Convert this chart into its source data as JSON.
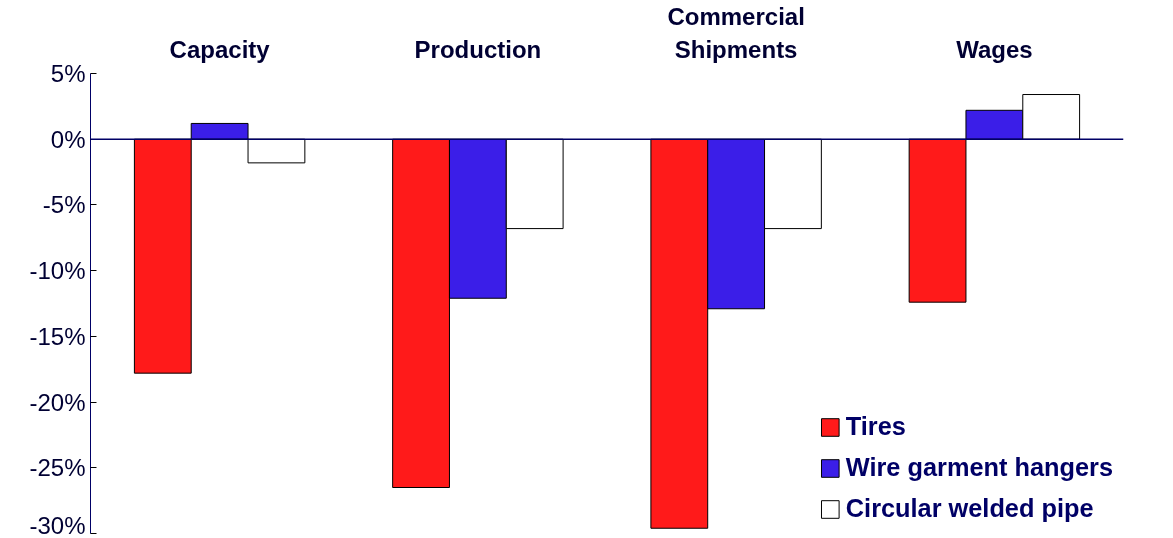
{
  "chart_data": {
    "type": "bar",
    "categories": [
      "Capacity",
      "Production",
      "Commercial\nShipments",
      "Wages"
    ],
    "series": [
      {
        "name": "Tires",
        "color": "#ff1a1a",
        "values": [
          -17.8,
          -26.5,
          -29.6,
          -12.4
        ]
      },
      {
        "name": "Wire garment hangers",
        "color": "#3b1ee8",
        "values": [
          1.2,
          -12.1,
          -12.9,
          2.2
        ]
      },
      {
        "name": "Circular welded pipe",
        "color": "#ffffff",
        "values": [
          -1.8,
          -6.8,
          -6.8,
          3.4
        ]
      }
    ],
    "ylim": [
      -30,
      5
    ],
    "yticks": [
      {
        "value": 5,
        "label": "5%"
      },
      {
        "value": 0,
        "label": "0%"
      },
      {
        "value": -5,
        "label": "-5%"
      },
      {
        "value": -10,
        "label": "-10%"
      },
      {
        "value": -15,
        "label": "-15%"
      },
      {
        "value": -20,
        "label": "-20%"
      },
      {
        "value": -25,
        "label": "-25%"
      },
      {
        "value": -30,
        "label": "-30%"
      }
    ],
    "ref_lines": [
      {
        "axis": "y",
        "value": 0,
        "color": "#000066"
      }
    ],
    "grid": false,
    "legend": "bottom right"
  }
}
